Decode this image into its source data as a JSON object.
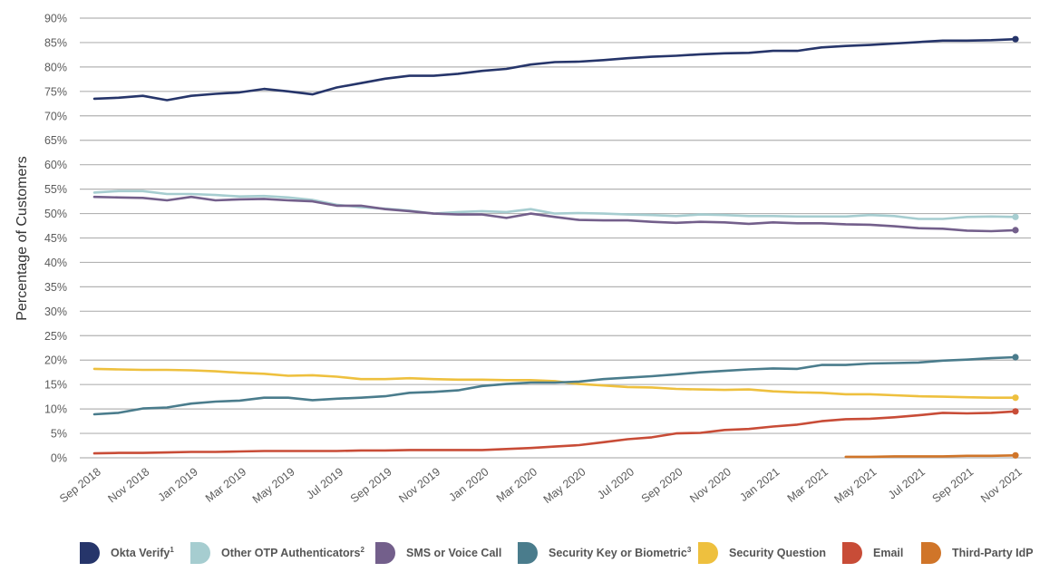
{
  "chart_data": {
    "type": "line",
    "title": "",
    "xlabel": "",
    "ylabel": "Percentage of Customers",
    "ylim": [
      0,
      90
    ],
    "yticks": [
      "0%",
      "5%",
      "10%",
      "15%",
      "20%",
      "25%",
      "30%",
      "35%",
      "40%",
      "45%",
      "50%",
      "55%",
      "60%",
      "65%",
      "70%",
      "75%",
      "80%",
      "85%",
      "90%"
    ],
    "ytick_values": [
      0,
      5,
      10,
      15,
      20,
      25,
      30,
      35,
      40,
      45,
      50,
      55,
      60,
      65,
      70,
      75,
      80,
      85,
      90
    ],
    "grid": true,
    "legend_position": "bottom",
    "x": [
      "Sep 2018",
      "Oct 2018",
      "Nov 2018",
      "Dec 2018",
      "Jan 2019",
      "Feb 2019",
      "Mar 2019",
      "Apr 2019",
      "May 2019",
      "Jun 2019",
      "Jul 2019",
      "Aug 2019",
      "Sep 2019",
      "Oct 2019",
      "Nov 2019",
      "Dec 2019",
      "Jan 2020",
      "Feb 2020",
      "Mar 2020",
      "Apr 2020",
      "May 2020",
      "Jun 2020",
      "Jul 2020",
      "Aug 2020",
      "Sep 2020",
      "Oct 2020",
      "Nov 2020",
      "Dec 2020",
      "Jan 2021",
      "Feb 2021",
      "Mar 2021",
      "Apr 2021",
      "May 2021",
      "Jun 2021",
      "Jul 2021",
      "Aug 2021",
      "Sep 2021",
      "Oct 2021",
      "Nov 2021"
    ],
    "xtick_labels": [
      "Sep 2018",
      "Nov 2018",
      "Jan 2019",
      "Mar 2019",
      "May 2019",
      "Jul 2019",
      "Sep 2019",
      "Nov 2019",
      "Jan 2020",
      "Mar 2020",
      "May 2020",
      "Jul 2020",
      "Sep 2020",
      "Nov 2020",
      "Jan 2021",
      "Mar 2021",
      "May 2021",
      "Jul 2021",
      "Sep 2021",
      "Nov 2021"
    ],
    "series": [
      {
        "name": "Okta Verify",
        "footnote": "1",
        "color": "#26356a",
        "values": [
          73.5,
          73.7,
          74.1,
          73.2,
          74.1,
          74.5,
          74.8,
          75.5,
          75.0,
          74.4,
          75.8,
          76.7,
          77.6,
          78.2,
          78.2,
          78.6,
          79.2,
          79.6,
          80.5,
          81.0,
          81.1,
          81.4,
          81.8,
          82.1,
          82.3,
          82.6,
          82.8,
          82.9,
          83.3,
          83.3,
          84.0,
          84.3,
          84.5,
          84.8,
          85.1,
          85.4,
          85.4,
          85.5,
          85.7
        ]
      },
      {
        "name": "Other OTP Authenticators",
        "footnote": "2",
        "color": "#a6cdd0",
        "values": [
          54.3,
          54.6,
          54.6,
          54.0,
          54.0,
          53.8,
          53.5,
          53.6,
          53.3,
          52.8,
          51.8,
          51.3,
          51.0,
          50.6,
          50.0,
          50.3,
          50.5,
          50.3,
          50.9,
          50.0,
          50.1,
          50.0,
          49.8,
          49.7,
          49.5,
          49.8,
          49.7,
          49.5,
          49.5,
          49.4,
          49.4,
          49.4,
          49.7,
          49.5,
          48.9,
          48.9,
          49.3,
          49.4,
          49.3
        ]
      },
      {
        "name": "SMS or Voice Call",
        "footnote": "",
        "color": "#735f8b",
        "values": [
          53.4,
          53.3,
          53.2,
          52.7,
          53.4,
          52.7,
          52.9,
          53.0,
          52.7,
          52.5,
          51.6,
          51.6,
          50.9,
          50.5,
          50.0,
          49.8,
          49.8,
          49.1,
          50.0,
          49.3,
          48.7,
          48.6,
          48.6,
          48.3,
          48.1,
          48.3,
          48.2,
          47.9,
          48.2,
          48.0,
          48.0,
          47.8,
          47.7,
          47.4,
          47.0,
          46.9,
          46.5,
          46.4,
          46.6
        ]
      },
      {
        "name": "Security Key or Biometric",
        "footnote": "3",
        "color": "#4a7c8c",
        "values": [
          8.9,
          9.2,
          10.1,
          10.3,
          11.1,
          11.5,
          11.7,
          12.3,
          12.3,
          11.8,
          12.1,
          12.3,
          12.6,
          13.3,
          13.5,
          13.8,
          14.7,
          15.1,
          15.4,
          15.4,
          15.6,
          16.1,
          16.4,
          16.7,
          17.1,
          17.5,
          17.8,
          18.1,
          18.3,
          18.2,
          19.0,
          19.0,
          19.3,
          19.4,
          19.5,
          19.9,
          20.1,
          20.4,
          20.6
        ]
      },
      {
        "name": "Security Question",
        "footnote": "",
        "color": "#eec03e",
        "values": [
          18.2,
          18.1,
          18.0,
          18.0,
          17.9,
          17.7,
          17.4,
          17.2,
          16.8,
          16.9,
          16.6,
          16.1,
          16.1,
          16.3,
          16.1,
          16.0,
          16.0,
          15.9,
          15.9,
          15.7,
          15.1,
          14.8,
          14.5,
          14.4,
          14.1,
          14.0,
          13.9,
          14.0,
          13.6,
          13.4,
          13.3,
          13.0,
          13.0,
          12.8,
          12.6,
          12.5,
          12.4,
          12.3,
          12.3
        ]
      },
      {
        "name": "Email",
        "footnote": "",
        "color": "#c84c37",
        "values": [
          0.9,
          1.0,
          1.0,
          1.1,
          1.2,
          1.2,
          1.3,
          1.4,
          1.4,
          1.4,
          1.4,
          1.5,
          1.5,
          1.6,
          1.6,
          1.6,
          1.6,
          1.8,
          2.0,
          2.3,
          2.6,
          3.2,
          3.8,
          4.2,
          5.0,
          5.1,
          5.7,
          5.9,
          6.4,
          6.8,
          7.5,
          7.9,
          8.0,
          8.3,
          8.7,
          9.2,
          9.1,
          9.2,
          9.5
        ]
      },
      {
        "name": "Third-Party IdP",
        "footnote": "",
        "color": "#d07529",
        "values": [
          null,
          null,
          null,
          null,
          null,
          null,
          null,
          null,
          null,
          null,
          null,
          null,
          null,
          null,
          null,
          null,
          null,
          null,
          null,
          null,
          null,
          null,
          null,
          null,
          null,
          null,
          null,
          null,
          null,
          null,
          null,
          0.2,
          0.2,
          0.3,
          0.3,
          0.3,
          0.4,
          0.4,
          0.5
        ]
      }
    ]
  }
}
